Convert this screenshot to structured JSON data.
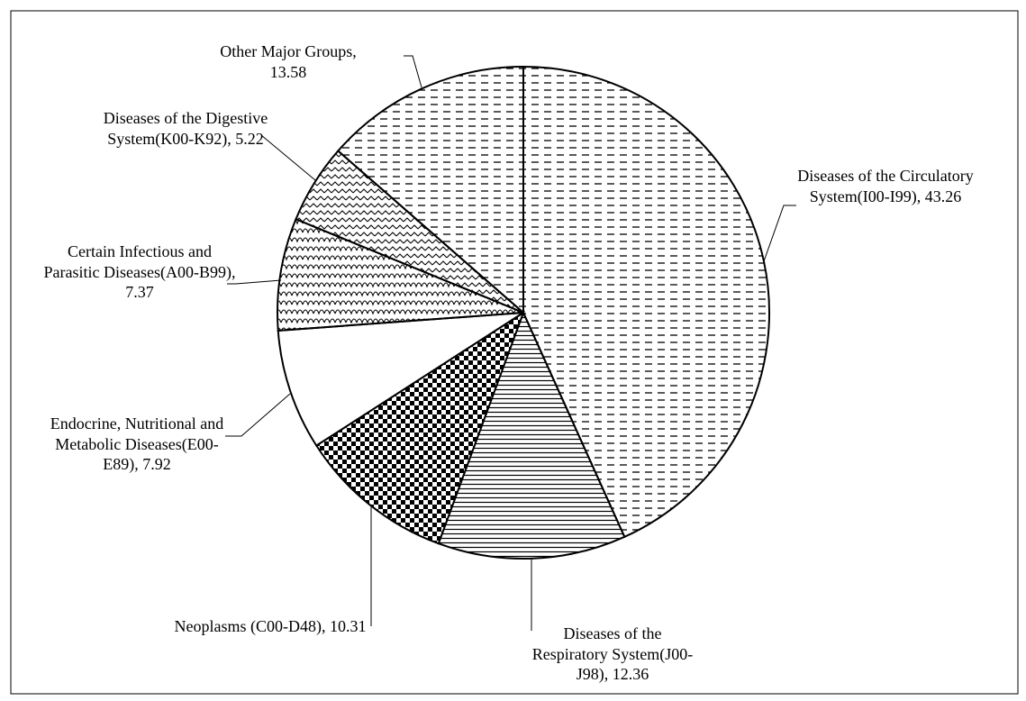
{
  "chart_data": {
    "type": "pie",
    "categories": [
      "Diseases of the Circulatory System(I00-I99)",
      "Diseases of the Respiratory System(J00-J98)",
      "Neoplasms (C00-D48)",
      "Endocrine, Nutritional and Metabolic Diseases(E00-E89)",
      "Certain Infectious and Parasitic Diseases(A00-B99)",
      "Diseases of the Digestive System(K00-K92)",
      "Other Major Groups"
    ],
    "values": [
      43.26,
      12.36,
      10.31,
      7.92,
      7.37,
      5.22,
      13.58
    ]
  }
}
